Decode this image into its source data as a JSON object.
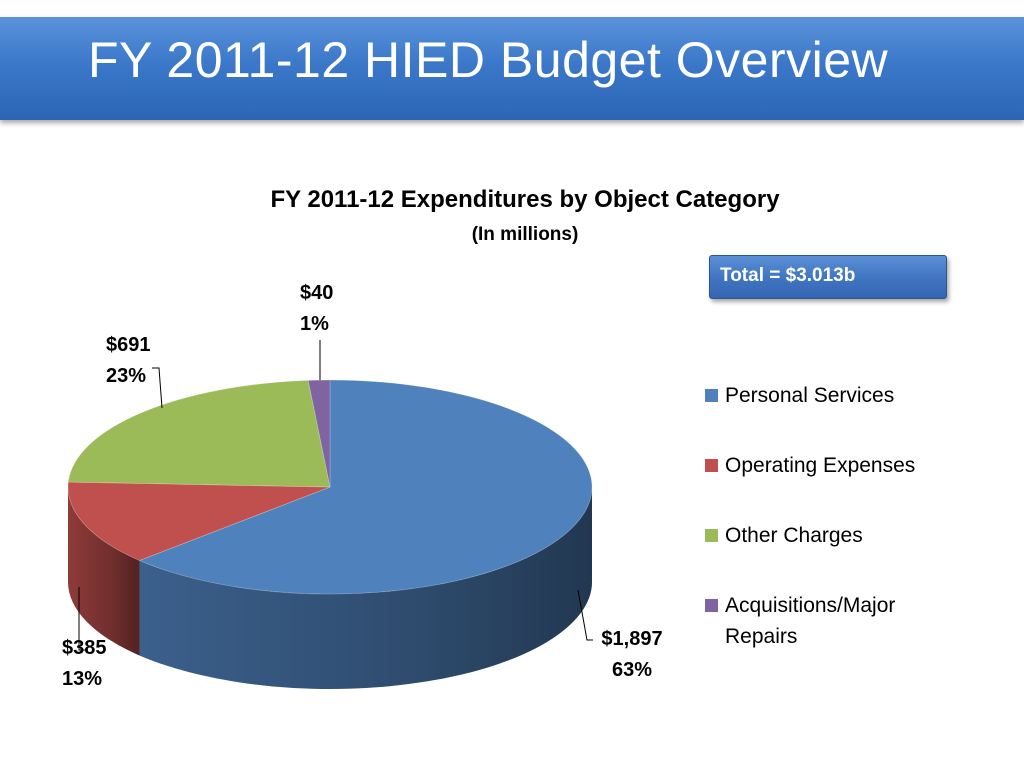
{
  "slide": {
    "title": "FY 2011-12 HIED Budget Overview",
    "total_label": "Total = $3.013b"
  },
  "colors": {
    "title_bar": "#3b78c9",
    "personal_services": "#4f81bd",
    "operating_expenses": "#c0504d",
    "other_charges": "#9bbb59",
    "acquisitions": "#8064a2"
  },
  "chart_data": {
    "type": "pie",
    "title": "FY 2011-12 Expenditures by Object Category",
    "subtitle": "(In millions)",
    "three_d": true,
    "legend_position": "right",
    "slices": [
      {
        "name": "Personal Services",
        "value": 1897,
        "label": "$1,897",
        "percent_label": "63%",
        "color": "#4f81bd"
      },
      {
        "name": "Operating Expenses",
        "value": 385,
        "label": "$385",
        "percent_label": "13%",
        "color": "#c0504d"
      },
      {
        "name": "Other Charges",
        "value": 691,
        "label": "$691",
        "percent_label": "23%",
        "color": "#9bbb59"
      },
      {
        "name": "Acquisitions/Major Repairs",
        "value": 40,
        "label": "$40",
        "percent_label": "1%",
        "color": "#8064a2"
      }
    ]
  }
}
